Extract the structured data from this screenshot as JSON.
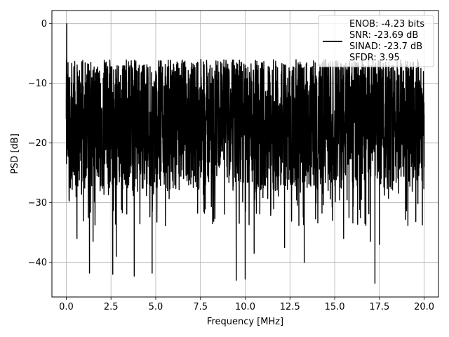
{
  "chart_data": {
    "type": "line",
    "title": "",
    "xlabel": "Frequency [MHz]",
    "ylabel": "PSD [dB]",
    "xlim": [
      -0.8,
      20.8
    ],
    "ylim": [
      -45.8,
      2.2
    ],
    "x_ticks": [
      0.0,
      2.5,
      5.0,
      7.5,
      10.0,
      12.5,
      15.0,
      17.5,
      20.0
    ],
    "x_tick_labels": [
      "0.0",
      "2.5",
      "5.0",
      "7.5",
      "10.0",
      "12.5",
      "15.0",
      "17.5",
      "20.0"
    ],
    "y_ticks": [
      0,
      -10,
      -20,
      -30,
      -40
    ],
    "y_tick_labels": [
      "0",
      "−10",
      "−20",
      "−30",
      "−40"
    ],
    "grid": true,
    "legend_position": "top-right",
    "line_color": "#000000",
    "series": [
      {
        "legend_lines": [
          "ENOB: -4.23 bits",
          "SNR: -23.69 dB",
          "SINAD: -23.7 dB",
          "SFDR: 3.95"
        ],
        "noise_floor_db": -16.0,
        "noise_band_db": [
          -28.0,
          -6.0
        ],
        "points": [
          {
            "x": 0.0,
            "y": -16.0
          },
          {
            "x": 0.03,
            "y": 0.0
          },
          {
            "x": 0.06,
            "y": -15.5
          },
          {
            "x": 0.1,
            "y": -7.0
          },
          {
            "x": 0.15,
            "y": -20.0
          },
          {
            "x": 0.2,
            "y": -9.0
          },
          {
            "x": 0.3,
            "y": -26.0
          },
          {
            "x": 0.45,
            "y": -8.5
          },
          {
            "x": 0.55,
            "y": -29.0
          },
          {
            "x": 0.6,
            "y": -36.0
          },
          {
            "x": 1.3,
            "y": -41.8
          },
          {
            "x": 1.5,
            "y": -36.5
          },
          {
            "x": 2.6,
            "y": -42.0
          },
          {
            "x": 2.8,
            "y": -39.0
          },
          {
            "x": 3.8,
            "y": -42.3
          },
          {
            "x": 4.8,
            "y": -41.8
          },
          {
            "x": 9.5,
            "y": -43.0
          },
          {
            "x": 10.0,
            "y": -42.8
          },
          {
            "x": 10.5,
            "y": -38.5
          },
          {
            "x": 12.2,
            "y": -37.5
          },
          {
            "x": 13.3,
            "y": -40.0
          },
          {
            "x": 15.5,
            "y": -36.0
          },
          {
            "x": 17.0,
            "y": -36.5
          },
          {
            "x": 17.25,
            "y": -43.5
          },
          {
            "x": 17.5,
            "y": -37.0
          },
          {
            "x": 20.0,
            "y": -24.0
          }
        ]
      }
    ]
  }
}
